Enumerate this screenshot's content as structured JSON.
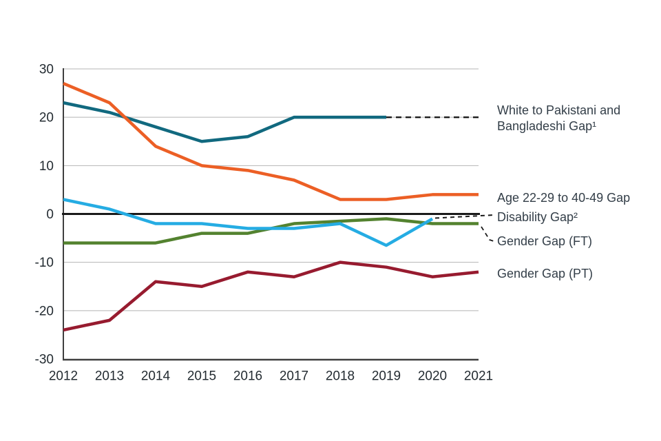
{
  "chart_data": {
    "type": "line",
    "x": [
      "2012",
      "2013",
      "2014",
      "2015",
      "2016",
      "2017",
      "2018",
      "2019",
      "2020",
      "2021"
    ],
    "title": "",
    "xlabel": "",
    "ylabel": "",
    "ylim": [
      -30,
      30
    ],
    "yticks": [
      "30",
      "20",
      "10",
      "0",
      "-10",
      "-20",
      "-30"
    ],
    "grid": "horizontal",
    "legend_position": "right-edge-direct-labels",
    "series": [
      {
        "name": "White to Pakistani and Bangladeshi Gap",
        "label": "White to Pakistani and Bangladeshi Gap¹",
        "color": "#11697F",
        "values": [
          23,
          21,
          18,
          15,
          16,
          20,
          20,
          20,
          20,
          20
        ],
        "dashed_from_index": 7
      },
      {
        "name": "Age 22-29 to 40-49 Gap",
        "label": "Age 22-29 to 40-49 Gap",
        "color": "#EC5F25",
        "values": [
          27,
          23,
          14,
          10,
          9,
          7,
          3,
          3,
          4,
          4
        ]
      },
      {
        "name": "Disability Gap",
        "label": "Disability Gap²",
        "color": "#25ACE3",
        "values": [
          3,
          1,
          -2,
          -2,
          -3,
          -3,
          -2,
          -6.5,
          -1,
          null
        ],
        "leader": "dashed"
      },
      {
        "name": "Gender Gap (FT)",
        "label": "Gender Gap (FT)",
        "color": "#53822F",
        "values": [
          -6,
          -6,
          -6,
          -4,
          -4,
          -2,
          -1.5,
          -1,
          -2,
          -2
        ],
        "leader": "dashed"
      },
      {
        "name": "Gender Gap (PT)",
        "label": "Gender Gap (PT)",
        "color": "#971B2F",
        "values": [
          -24,
          -22,
          -14,
          -15,
          -12,
          -13,
          -10,
          -11,
          -13,
          -12
        ]
      }
    ]
  },
  "colors": {
    "background": "#FFFFFF",
    "grid": "#B5B5B5",
    "axis": "#3F3F3F",
    "zero_line": "#1A1A1A",
    "leader_dash": "#1A1A1A",
    "tick_text": "#232B31",
    "label_text": "#333E48"
  }
}
